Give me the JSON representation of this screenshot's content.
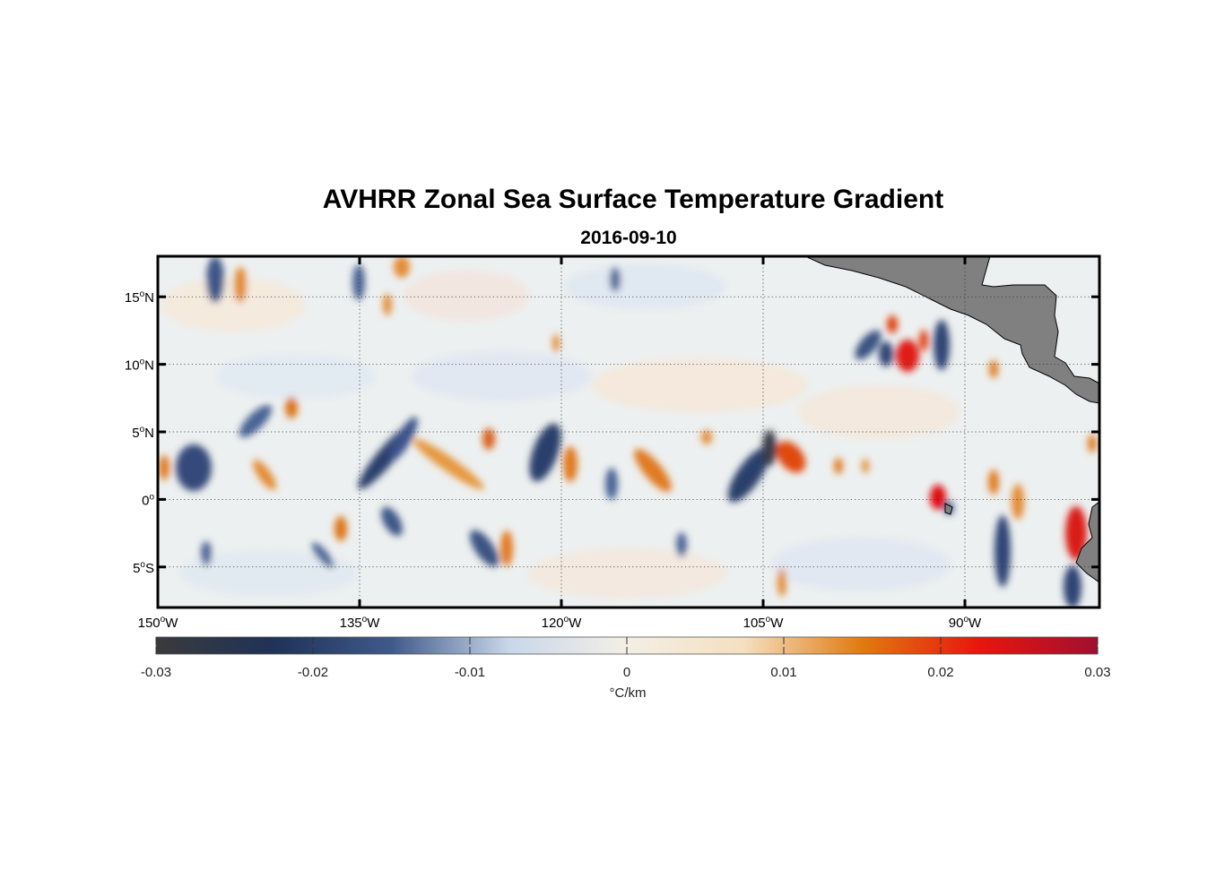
{
  "title": "AVHRR Zonal Sea Surface Temperature Gradient",
  "subtitle": "2016-09-10",
  "map": {
    "lon_range": [
      -150,
      -80
    ],
    "lat_range": [
      -8,
      18
    ],
    "land_color": "#808080",
    "gridlines": "dotted"
  },
  "axes": {
    "x_ticks": [
      {
        "value": -150,
        "num": "150",
        "hemi": "W"
      },
      {
        "value": -135,
        "num": "135",
        "hemi": "W"
      },
      {
        "value": -120,
        "num": "120",
        "hemi": "W"
      },
      {
        "value": -105,
        "num": "105",
        "hemi": "W"
      },
      {
        "value": -90,
        "num": "90",
        "hemi": "W"
      }
    ],
    "y_ticks": [
      {
        "value": 15,
        "num": "15",
        "hemi": "N"
      },
      {
        "value": 10,
        "num": "10",
        "hemi": "N"
      },
      {
        "value": 5,
        "num": "5",
        "hemi": "N"
      },
      {
        "value": 0,
        "num": "0",
        "hemi": ""
      },
      {
        "value": -5,
        "num": "5",
        "hemi": "S"
      }
    ]
  },
  "colorbar": {
    "min": -0.03,
    "max": 0.03,
    "tick_labels": [
      "-0.03",
      "-0.02",
      "-0.01",
      "0",
      "0.01",
      "0.02",
      "0.03"
    ],
    "units": "°C/km",
    "colors": [
      "#3a3a3c",
      "#1f3258",
      "#3f5a8a",
      "#c9d7ea",
      "#f3efe6",
      "#f5dfbf",
      "#e07a10",
      "#e8150d",
      "#a01030"
    ]
  }
}
